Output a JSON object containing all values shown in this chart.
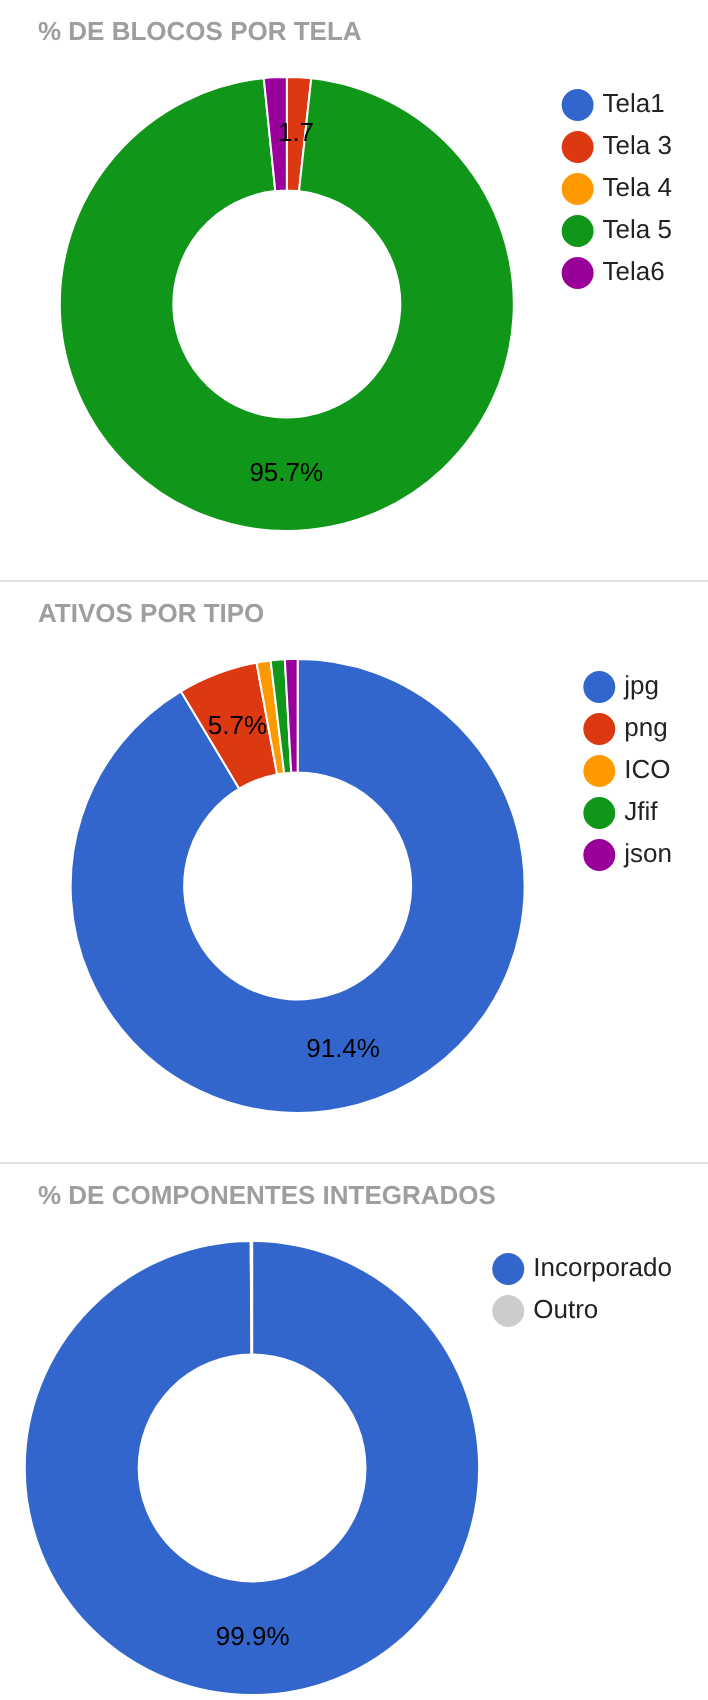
{
  "chart_data": [
    {
      "type": "donut",
      "title": "% DE BLOCOS POR TELA",
      "categories": [
        "Tela1",
        "Tela 3",
        "Tela 4",
        "Tela 5",
        "Tela6"
      ],
      "values": [
        null,
        1.7,
        null,
        95.7,
        1.6
      ],
      "colors": [
        "#3366cc",
        "#dc3912",
        "#ff9900",
        "#109618",
        "#990099"
      ],
      "value_labels": [
        null,
        "1.7",
        null,
        "95.7%",
        null
      ],
      "legend": "top right"
    },
    {
      "type": "donut",
      "title": "ATIVOS POR TIPO",
      "categories": [
        "jpg",
        "png",
        "ICO",
        "Jfif",
        "json"
      ],
      "values": [
        91.4,
        5.7,
        1.0,
        1.0,
        0.9
      ],
      "colors": [
        "#3366cc",
        "#dc3912",
        "#ff9900",
        "#109618",
        "#990099"
      ],
      "value_labels": [
        "91.4%",
        "5.7%",
        null,
        null,
        null
      ],
      "legend": "top right"
    },
    {
      "type": "donut",
      "title": "% DE COMPONENTES INTEGRADOS",
      "categories": [
        "Incorporado",
        "Outro"
      ],
      "values": [
        99.9,
        0.1
      ],
      "colors": [
        "#3366cc",
        "#cccccc"
      ],
      "value_labels": [
        "99.9%",
        null
      ],
      "legend": "top right"
    }
  ]
}
